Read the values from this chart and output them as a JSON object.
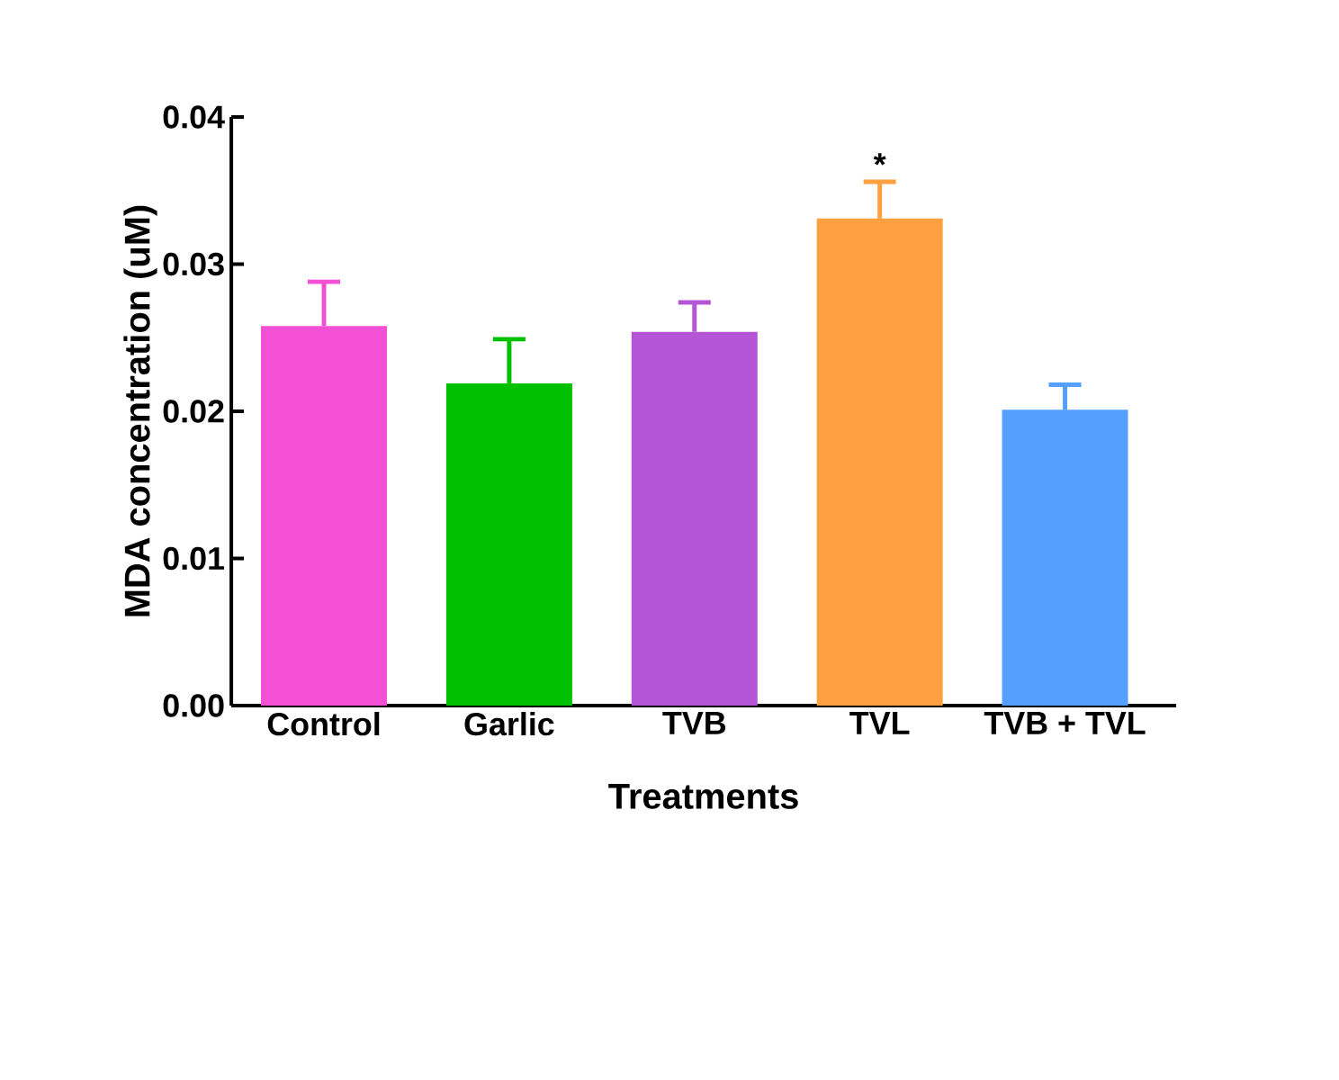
{
  "chart_data": {
    "type": "bar",
    "xlabel": "Treatments",
    "ylabel": "MDA concentration (uM)",
    "categories": [
      "Control",
      "Garlic",
      "TVB",
      "TVL",
      "TVB + TVL"
    ],
    "values": [
      0.0258,
      0.0219,
      0.0254,
      0.0331,
      0.0201
    ],
    "errors": [
      0.003,
      0.003,
      0.002,
      0.0025,
      0.0017
    ],
    "colors": [
      "#f450d6",
      "#00c000",
      "#b455d6",
      "#ffa040",
      "#55a0ff"
    ],
    "ylim": [
      0,
      0.04
    ],
    "yticks": [
      {
        "value": 0,
        "label": "0.00"
      },
      {
        "value": 0.01,
        "label": "0.01"
      },
      {
        "value": 0.02,
        "label": "0.02"
      },
      {
        "value": 0.03,
        "label": "0.03"
      },
      {
        "value": 0.04,
        "label": "0.04"
      }
    ],
    "annotations": [
      "*"
    ]
  }
}
